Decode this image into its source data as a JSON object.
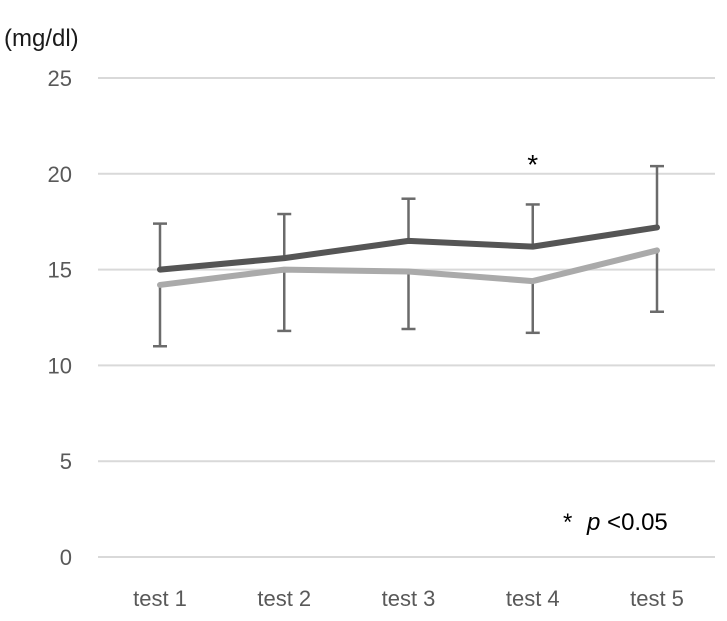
{
  "chart_data": {
    "type": "line",
    "ylabel": "(mg/dl)",
    "ylim": [
      0,
      25
    ],
    "yticks": [
      "0",
      "5",
      "10",
      "15",
      "20",
      "25"
    ],
    "categories": [
      "test 1",
      "test 2",
      "test 3",
      "test 4",
      "test 5"
    ],
    "grid": true,
    "series": [
      {
        "color": "#555555",
        "values": [
          15.0,
          15.6,
          16.5,
          16.2,
          17.2
        ],
        "error_upper": [
          17.4,
          17.9,
          18.7,
          18.4,
          20.4
        ]
      },
      {
        "color": "#aaaaaa",
        "values": [
          14.2,
          15.0,
          14.9,
          14.4,
          16.0
        ],
        "error_lower": [
          11.0,
          11.8,
          11.9,
          11.7,
          12.8
        ]
      }
    ],
    "annotations": [
      {
        "text": "*",
        "category": "test 4"
      }
    ],
    "significance_note": {
      "star": "*",
      "p": "p",
      "rest": "<0.05"
    }
  }
}
